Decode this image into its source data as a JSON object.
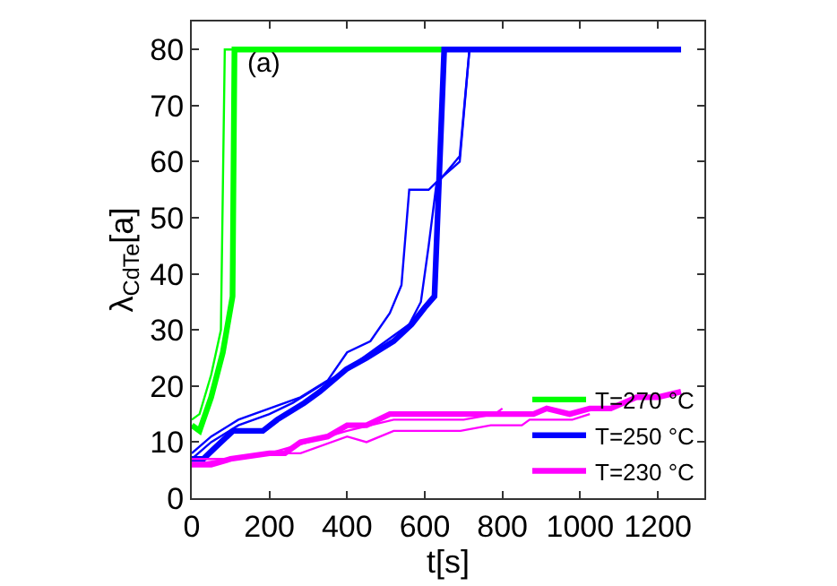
{
  "chart_data": {
    "type": "line",
    "xlabel": "t[s]",
    "ylabel": "λ$_{CdTe}$[a]",
    "annotations": [
      "(a)"
    ],
    "xlim": [
      0,
      1320
    ],
    "xticks": [
      0,
      200,
      400,
      600,
      800,
      1000,
      1200
    ],
    "ylim": [
      0,
      85
    ],
    "yticks": [
      0,
      10,
      20,
      30,
      40,
      50,
      60,
      70,
      80
    ],
    "legend": "bottom right",
    "marker": "none",
    "line_style": "solid",
    "series": [
      {
        "name": "T=270 °C",
        "color": "#00ff00",
        "x": [
          0,
          20,
          50,
          80,
          105,
          110,
          650
        ],
        "values": [
          13,
          12,
          18,
          26,
          36,
          80,
          80
        ]
      },
      {
        "color": "#00ff00",
        "x": [
          0,
          20,
          50,
          75,
          85,
          110
        ],
        "values": [
          14,
          15,
          22,
          30,
          80,
          80
        ]
      },
      {
        "name": "T=250 °C",
        "color": "#0000ff",
        "x": [
          0,
          30,
          60,
          106,
          183,
          220,
          290,
          330,
          398,
          450,
          520,
          566,
          600,
          625,
          650,
          1260
        ],
        "values": [
          7,
          7,
          9,
          12,
          12,
          14,
          17,
          19,
          23,
          25,
          28,
          31,
          34,
          36,
          80,
          80
        ]
      },
      {
        "color": "#0000ff",
        "x": [
          0,
          50,
          120,
          200,
          280,
          350,
          400,
          460,
          510,
          540,
          560,
          610,
          640,
          690,
          715
        ],
        "values": [
          8,
          11,
          14,
          16,
          18,
          21,
          26,
          28,
          33,
          38,
          55,
          55,
          57,
          60,
          80
        ]
      },
      {
        "color": "#0000ff",
        "x": [
          0,
          50,
          120,
          200,
          260,
          330,
          400,
          460,
          520,
          560,
          590,
          610,
          630,
          690,
          715
        ],
        "values": [
          7,
          10,
          13,
          15,
          17,
          20,
          23,
          26,
          29,
          31,
          35,
          45,
          56,
          61,
          80
        ]
      },
      {
        "name": "T=230 °C",
        "color": "#ff00ff",
        "x": [
          0,
          50,
          100,
          200,
          240,
          280,
          350,
          400,
          450,
          510,
          600,
          880,
          914,
          973,
          1025,
          1079,
          1145,
          1200,
          1260
        ],
        "values": [
          6,
          6,
          7,
          8,
          8,
          10,
          11,
          13,
          13,
          15,
          15,
          15,
          16,
          15,
          16,
          16,
          18,
          18,
          19
        ]
      },
      {
        "color": "#ff00ff",
        "x": [
          0,
          100,
          200,
          280,
          400,
          450,
          520,
          614,
          692,
          770,
          850,
          870,
          980,
          1025
        ],
        "values": [
          7,
          7,
          8,
          8,
          11,
          10,
          12,
          12,
          12,
          13,
          13,
          14,
          14,
          15
        ]
      },
      {
        "color": "#ff00ff",
        "x": [
          0,
          100,
          200,
          300,
          400,
          460,
          520,
          700,
          780,
          800
        ],
        "values": [
          6,
          7,
          8,
          10,
          12,
          13,
          14,
          14,
          15,
          16
        ]
      }
    ]
  }
}
